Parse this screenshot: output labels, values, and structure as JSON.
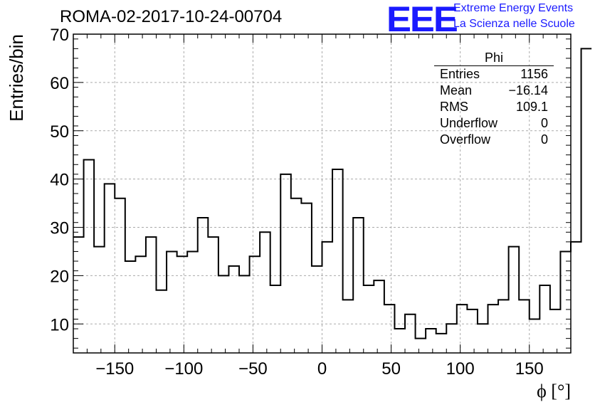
{
  "header": {
    "run_title": "ROMA-02-2017-10-24-00704",
    "logo_text": "EEE",
    "brand_line1": "Extreme Energy Events",
    "brand_line2": "La Scienza nelle Scuole"
  },
  "stats_box": {
    "title": "Phi",
    "rows": [
      {
        "label": "Entries",
        "value": "1156"
      },
      {
        "label": "Mean",
        "value": "−16.14"
      },
      {
        "label": "RMS",
        "value": "109.1"
      },
      {
        "label": "Underflow",
        "value": "0"
      },
      {
        "label": "Overflow",
        "value": "0"
      }
    ]
  },
  "colors": {
    "line": "#000000",
    "grid": "#aaaaaa",
    "brand": "#1a1aff"
  },
  "chart_data": {
    "type": "histogram",
    "title": "ROMA-02-2017-10-24-00704",
    "xlabel": "ϕ [°]",
    "ylabel": "Entries/bin",
    "xlim": [
      -180,
      180
    ],
    "ylim": [
      4,
      70
    ],
    "grid": true,
    "xticks": [
      -150,
      -100,
      -50,
      0,
      50,
      100,
      150
    ],
    "xtick_labels": [
      "−150",
      "−100",
      "−50",
      "0",
      "50",
      "100",
      "150"
    ],
    "yticks": [
      10,
      20,
      30,
      40,
      50,
      60,
      70
    ],
    "ytick_labels": [
      "10",
      "20",
      "30",
      "40",
      "50",
      "60",
      "70"
    ],
    "bin_width": 7.5,
    "bin_edges_start": -180,
    "values": [
      28,
      44,
      26,
      39,
      36,
      23,
      24,
      28,
      17,
      25,
      24,
      25,
      32,
      28,
      20,
      22,
      20,
      24,
      29,
      18,
      41,
      36,
      35,
      22,
      27,
      42,
      15,
      32,
      18,
      19,
      14,
      9,
      12,
      7,
      9,
      8,
      10,
      14,
      13,
      10,
      14,
      15,
      26,
      15,
      11,
      18,
      13,
      25,
      27,
      67
    ]
  }
}
